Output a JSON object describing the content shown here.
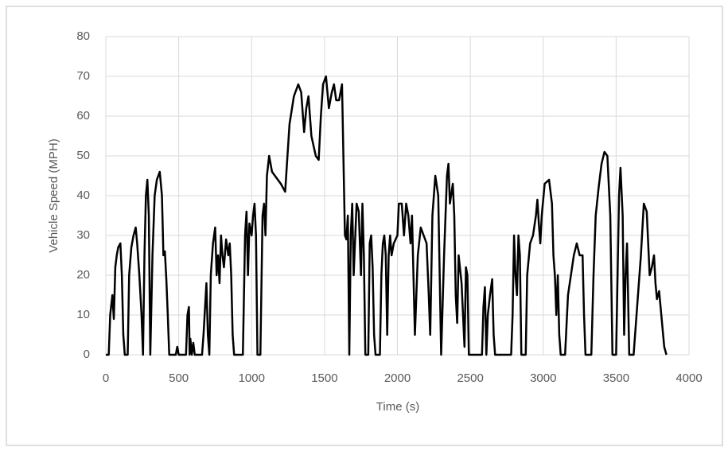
{
  "chart_data": {
    "type": "line",
    "x_label": "Time (s)",
    "y_label": "Vehicle Speed (MPH)",
    "x": [
      0,
      20,
      30,
      45,
      55,
      65,
      75,
      85,
      100,
      110,
      120,
      130,
      150,
      160,
      175,
      190,
      205,
      215,
      230,
      245,
      255,
      265,
      275,
      285,
      295,
      305,
      320,
      335,
      350,
      370,
      385,
      395,
      405,
      415,
      425,
      435,
      480,
      490,
      500,
      550,
      560,
      570,
      575,
      580,
      590,
      600,
      610,
      660,
      670,
      690,
      700,
      710,
      720,
      735,
      750,
      760,
      770,
      780,
      790,
      800,
      810,
      825,
      840,
      850,
      860,
      870,
      880,
      940,
      955,
      965,
      975,
      985,
      1000,
      1010,
      1020,
      1030,
      1040,
      1060,
      1075,
      1085,
      1095,
      1105,
      1120,
      1140,
      1160,
      1200,
      1230,
      1260,
      1290,
      1320,
      1340,
      1360,
      1375,
      1390,
      1410,
      1440,
      1460,
      1475,
      1490,
      1510,
      1530,
      1550,
      1565,
      1580,
      1600,
      1620,
      1640,
      1650,
      1660,
      1670,
      1680,
      1690,
      1700,
      1720,
      1735,
      1750,
      1760,
      1770,
      1780,
      1800,
      1810,
      1820,
      1830,
      1840,
      1850,
      1880,
      1890,
      1900,
      1910,
      1920,
      1930,
      1940,
      1950,
      1960,
      1975,
      2000,
      2010,
      2030,
      2045,
      2060,
      2075,
      2090,
      2100,
      2110,
      2120,
      2130,
      2140,
      2160,
      2180,
      2200,
      2215,
      2225,
      2240,
      2260,
      2280,
      2300,
      2320,
      2340,
      2350,
      2360,
      2380,
      2390,
      2400,
      2410,
      2420,
      2440,
      2450,
      2460,
      2470,
      2480,
      2490,
      2580,
      2590,
      2600,
      2610,
      2620,
      2635,
      2650,
      2660,
      2670,
      2780,
      2790,
      2800,
      2810,
      2820,
      2830,
      2840,
      2850,
      2880,
      2890,
      2910,
      2930,
      2950,
      2960,
      2970,
      2980,
      2990,
      3010,
      3040,
      3060,
      3070,
      3080,
      3090,
      3100,
      3110,
      3120,
      3150,
      3170,
      3190,
      3210,
      3230,
      3250,
      3270,
      3280,
      3290,
      3330,
      3345,
      3360,
      3380,
      3400,
      3420,
      3440,
      3460,
      3475,
      3500,
      3520,
      3530,
      3545,
      3555,
      3565,
      3575,
      3590,
      3620,
      3670,
      3690,
      3710,
      3730,
      3745,
      3760,
      3770,
      3780,
      3795,
      3810,
      3830,
      3845
    ],
    "series": [
      {
        "color": "#000000",
        "values": [
          0,
          0,
          10,
          15,
          9,
          22,
          25,
          27,
          28,
          20,
          5,
          0,
          0,
          20,
          27,
          30,
          32,
          28,
          20,
          10,
          0,
          25,
          40,
          44,
          35,
          0,
          25,
          40,
          44,
          46,
          40,
          25,
          26,
          19,
          10,
          0,
          0,
          2,
          0,
          0,
          10,
          12,
          0,
          4,
          0,
          3,
          0,
          0,
          5,
          18,
          5,
          0,
          20,
          28,
          32,
          20,
          25,
          18,
          30,
          25,
          22,
          29,
          25,
          28,
          20,
          5,
          0,
          0,
          30,
          36,
          20,
          33,
          30,
          35,
          38,
          30,
          0,
          0,
          35,
          38,
          30,
          45,
          50,
          46,
          45,
          43,
          41,
          58,
          65,
          68,
          66,
          56,
          62,
          65,
          55,
          50,
          49,
          60,
          68,
          70,
          62,
          66,
          68,
          64,
          64,
          68,
          30,
          29,
          35,
          0,
          30,
          38,
          20,
          38,
          36,
          20,
          38,
          25,
          0,
          0,
          28,
          30,
          22,
          5,
          0,
          0,
          20,
          28,
          30,
          25,
          5,
          25,
          30,
          25,
          28,
          30,
          38,
          38,
          30,
          38,
          35,
          28,
          35,
          20,
          5,
          15,
          25,
          32,
          30,
          28,
          15,
          5,
          35,
          45,
          40,
          0,
          25,
          45,
          48,
          38,
          43,
          35,
          15,
          8,
          25,
          18,
          10,
          2,
          22,
          20,
          0,
          0,
          12,
          17,
          0,
          10,
          15,
          19,
          5,
          0,
          0,
          10,
          30,
          20,
          15,
          30,
          25,
          0,
          0,
          20,
          28,
          30,
          35,
          39,
          33,
          28,
          35,
          43,
          44,
          38,
          25,
          20,
          10,
          20,
          5,
          0,
          0,
          15,
          20,
          25,
          28,
          25,
          25,
          10,
          0,
          0,
          20,
          35,
          42,
          48,
          51,
          50,
          35,
          0,
          0,
          40,
          47,
          35,
          5,
          20,
          28,
          0,
          0,
          25,
          38,
          36,
          20,
          22,
          25,
          18,
          14,
          16,
          10,
          2,
          0
        ]
      }
    ],
    "xlim": [
      0,
      4000
    ],
    "xticks": [
      0,
      500,
      1000,
      1500,
      2000,
      2500,
      3000,
      3500,
      4000
    ],
    "ylim": [
      0,
      80
    ],
    "yticks": [
      0,
      10,
      20,
      30,
      40,
      50,
      60,
      70,
      80
    ],
    "grid": true
  }
}
